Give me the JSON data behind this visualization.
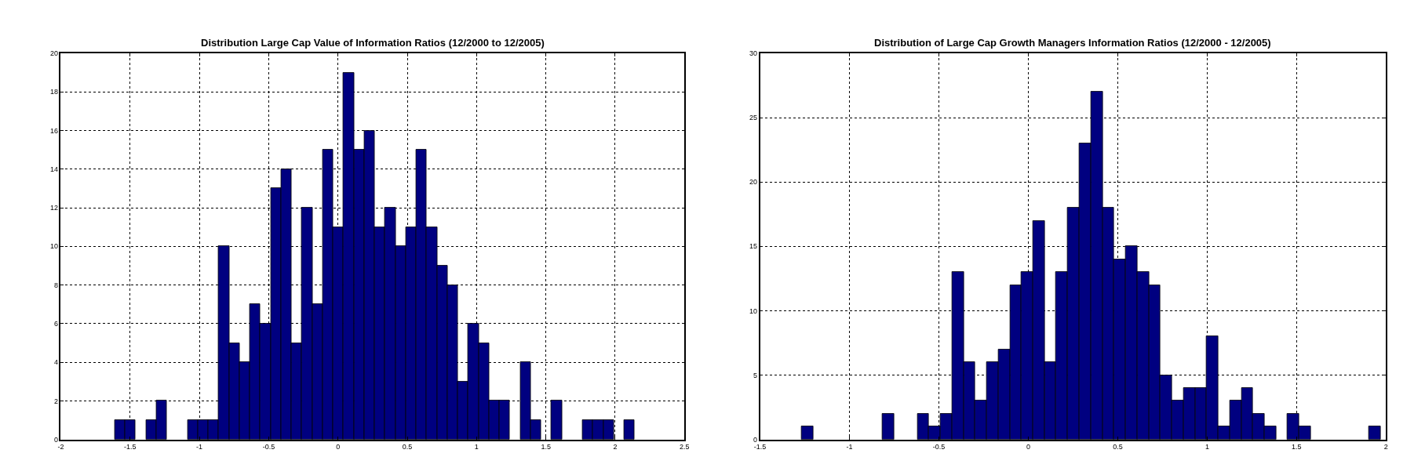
{
  "chart_data": [
    {
      "type": "histogram",
      "title": "Distribution Large Cap Value of Information Ratios (12/2000 to 12/2005)",
      "bins": [
        -1.61,
        -1.535,
        -1.46,
        -1.385,
        -1.31,
        -1.235,
        -1.16,
        -1.085,
        -1.01,
        -0.935,
        -0.86,
        -0.785,
        -0.71,
        -0.635,
        -0.56,
        -0.485,
        -0.41,
        -0.335,
        -0.26,
        -0.185,
        -0.11,
        -0.035,
        0.04,
        0.115,
        0.19,
        0.265,
        0.34,
        0.415,
        0.49,
        0.565,
        0.64,
        0.715,
        0.79,
        0.865,
        0.94,
        1.015,
        1.09,
        1.165,
        1.24,
        1.315,
        1.39,
        1.465,
        1.54,
        1.615,
        1.69,
        1.765,
        1.84,
        1.915,
        1.99,
        2.065,
        2.14
      ],
      "values": [
        1,
        1,
        0,
        1,
        2,
        0,
        0,
        1,
        1,
        1,
        10,
        5,
        4,
        7,
        6,
        13,
        14,
        5,
        12,
        7,
        15,
        11,
        19,
        15,
        16,
        11,
        12,
        10,
        11,
        15,
        11,
        9,
        8,
        3,
        6,
        5,
        2,
        2,
        0,
        4,
        1,
        0,
        2,
        0,
        0,
        1,
        1,
        1,
        0,
        1
      ],
      "color": "#000080",
      "xlim": [
        -2,
        2.5
      ],
      "xticks": [
        -2,
        -1.5,
        -1,
        -0.5,
        0,
        0.5,
        1,
        1.5,
        2,
        2.5
      ],
      "ylim": [
        0,
        20
      ],
      "yticks": [
        0,
        2,
        4,
        6,
        8,
        10,
        12,
        14,
        16,
        18,
        20
      ],
      "grid": true
    },
    {
      "type": "histogram",
      "title": "Distribution of Large Cap Growth Managers Information Ratios (12/2000 - 12/2005)",
      "bins": [
        -1.267,
        -1.202,
        -1.138,
        -1.073,
        -1.008,
        -0.944,
        -0.879,
        -0.814,
        -0.749,
        -0.685,
        -0.62,
        -0.555,
        -0.491,
        -0.426,
        -0.361,
        -0.297,
        -0.232,
        -0.167,
        -0.102,
        -0.038,
        0.027,
        0.092,
        0.156,
        0.221,
        0.286,
        0.351,
        0.415,
        0.48,
        0.545,
        0.609,
        0.674,
        0.739,
        0.803,
        0.868,
        0.933,
        0.998,
        1.062,
        1.127,
        1.192,
        1.256,
        1.321,
        1.386,
        1.45,
        1.515,
        1.58,
        1.645,
        1.709,
        1.774,
        1.839,
        1.903,
        1.968
      ],
      "values": [
        1,
        0,
        0,
        0,
        0,
        0,
        0,
        2,
        0,
        0,
        2,
        1,
        2,
        13,
        6,
        3,
        6,
        7,
        12,
        13,
        17,
        6,
        13,
        18,
        23,
        27,
        18,
        14,
        15,
        13,
        12,
        5,
        3,
        4,
        4,
        8,
        1,
        3,
        4,
        2,
        1,
        0,
        2,
        1,
        0,
        0,
        0,
        0,
        0,
        1
      ],
      "color": "#000080",
      "xlim": [
        -1.5,
        2
      ],
      "xticks": [
        -1.5,
        -1,
        -0.5,
        0,
        0.5,
        1,
        1.5,
        2
      ],
      "ylim": [
        0,
        30
      ],
      "yticks": [
        0,
        5,
        10,
        15,
        20,
        25,
        30
      ],
      "grid": true
    }
  ]
}
